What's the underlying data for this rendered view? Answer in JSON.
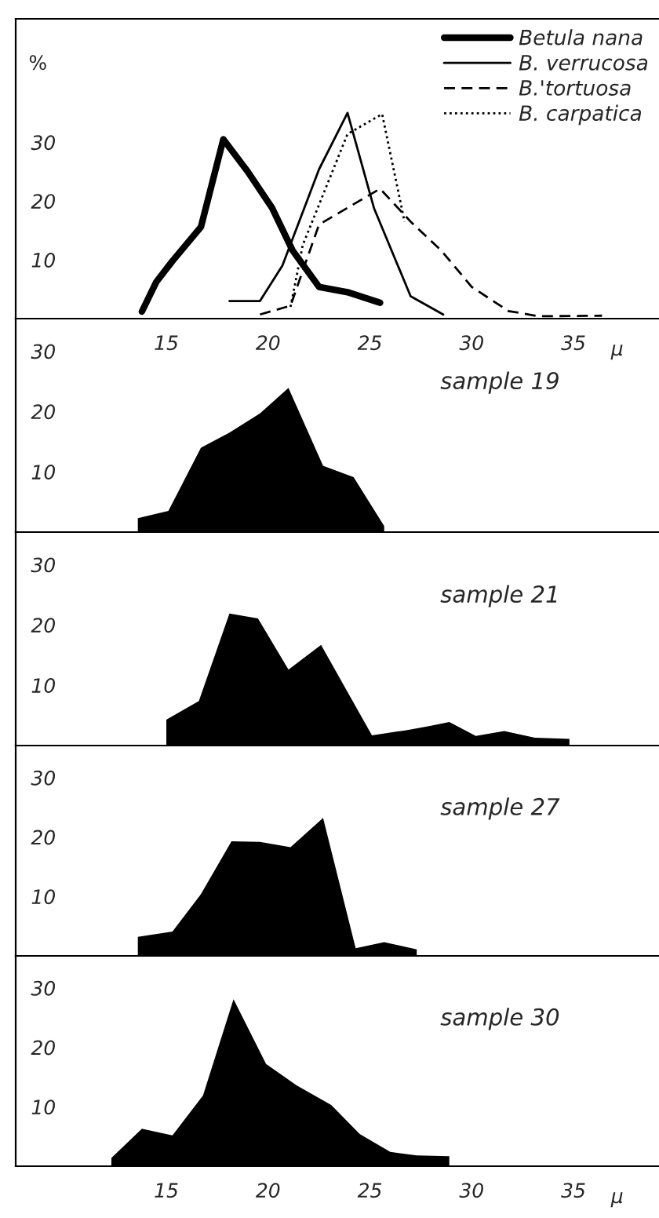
{
  "chart_data": [
    {
      "type": "line",
      "ylabel": "%",
      "xlabel": "μ",
      "xlim": [
        7.6,
        39.2
      ],
      "xticks": [
        15,
        20,
        25,
        30,
        35
      ],
      "ylim": [
        0,
        51
      ],
      "yticks": [
        10,
        20,
        30
      ],
      "grid": false,
      "legend": "top right",
      "series": [
        {
          "name": "Betula nana",
          "color": "#000000",
          "line_style": "solid",
          "x": [
            13.8,
            14.5,
            15.3,
            16.7,
            17.8,
            19.0,
            20.2,
            21.2,
            22.5,
            23.9,
            25.5
          ],
          "values": [
            1.2,
            6.2,
            9.8,
            15.6,
            30.5,
            25,
            18.8,
            11.6,
            5.4,
            4.5,
            2.7
          ]
        },
        {
          "name": "B. verrucosa",
          "color": "#000000",
          "line_style": "solid",
          "x": [
            18.1,
            19.6,
            20.7,
            22.5,
            23.9,
            25.2,
            27.0,
            28.6
          ],
          "values": [
            3,
            3,
            9,
            25.4,
            35,
            18.8,
            3.8,
            0.7
          ]
        },
        {
          "name": "B.'tortuosa",
          "color": "#000000",
          "line_style": "dashed",
          "x": [
            19.6,
            21.1,
            22.5,
            25.5,
            27.0,
            28.5,
            30.0,
            31.8,
            33.3,
            36.4
          ],
          "values": [
            0.7,
            2.2,
            16,
            22.1,
            16.5,
            11.6,
            5.4,
            1.3,
            0.4,
            0.5
          ]
        },
        {
          "name": "B. carpatica",
          "color": "#000000",
          "line_style": "dotted",
          "x": [
            21.1,
            21.7,
            23.9,
            25.6,
            26.7
          ],
          "values": [
            2,
            12.5,
            31.4,
            34.8,
            16.5
          ]
        }
      ]
    },
    {
      "type": "area",
      "title": "sample 19",
      "tick_labels": "y",
      "xlim": [
        7.6,
        39.2
      ],
      "xticks": [
        15,
        20,
        25,
        30,
        35
      ],
      "ylim": [
        0,
        35.4
      ],
      "yticks": [
        10,
        20,
        30
      ],
      "grid": false,
      "color": "#000000",
      "x": [
        13.6,
        15.1,
        16.7,
        18.1,
        19.6,
        21.0,
        22.7,
        24.2,
        25.7
      ],
      "values": [
        2.3,
        3.5,
        14,
        16.5,
        19.7,
        23.9,
        11,
        9.1,
        1
      ]
    },
    {
      "type": "area",
      "title": "sample 21",
      "tick_labels": "y",
      "xlim": [
        7.6,
        39.2
      ],
      "xticks": [
        15,
        20,
        25,
        30,
        35
      ],
      "ylim": [
        0,
        35.4
      ],
      "yticks": [
        10,
        20,
        30
      ],
      "grid": false,
      "color": "#000000",
      "x": [
        15.0,
        16.6,
        18.1,
        19.5,
        21.0,
        22.6,
        25.1,
        26.9,
        28.0,
        28.9,
        30.2,
        31.6,
        33.1,
        34.8
      ],
      "values": [
        4.3,
        7.4,
        21.9,
        21.1,
        12.6,
        16.7,
        1.7,
        2.6,
        3.3,
        3.9,
        1.6,
        2.4,
        1.3,
        1.1
      ]
    },
    {
      "type": "area",
      "title": "sample 27",
      "tick_labels": "y",
      "xlim": [
        7.6,
        39.2
      ],
      "xticks": [
        15,
        20,
        25,
        30,
        35
      ],
      "ylim": [
        0,
        35.4
      ],
      "yticks": [
        10,
        20,
        30
      ],
      "grid": false,
      "color": "#000000",
      "x": [
        13.6,
        15.3,
        16.7,
        18.2,
        19.6,
        21.1,
        22.7,
        24.3,
        25.7,
        27.3
      ],
      "values": [
        3.2,
        4.1,
        10.4,
        19.3,
        19.2,
        18.3,
        23.2,
        1.3,
        2.3,
        1.1
      ]
    },
    {
      "type": "area",
      "title": "sample 30",
      "xlabel": "μ",
      "xlim": [
        7.6,
        39.2
      ],
      "xticks": [
        15,
        20,
        25,
        30,
        35
      ],
      "ylim": [
        0,
        35.4
      ],
      "yticks": [
        10,
        20,
        30
      ],
      "grid": false,
      "color": "#000000",
      "x": [
        12.3,
        13.8,
        15.3,
        16.8,
        18.3,
        19.9,
        21.4,
        23.1,
        24.5,
        26.0,
        27.3,
        28.9
      ],
      "values": [
        1.4,
        6.3,
        5.2,
        11.9,
        28.1,
        17.2,
        13.6,
        10.3,
        5.4,
        2.4,
        1.8,
        1.7
      ]
    }
  ]
}
